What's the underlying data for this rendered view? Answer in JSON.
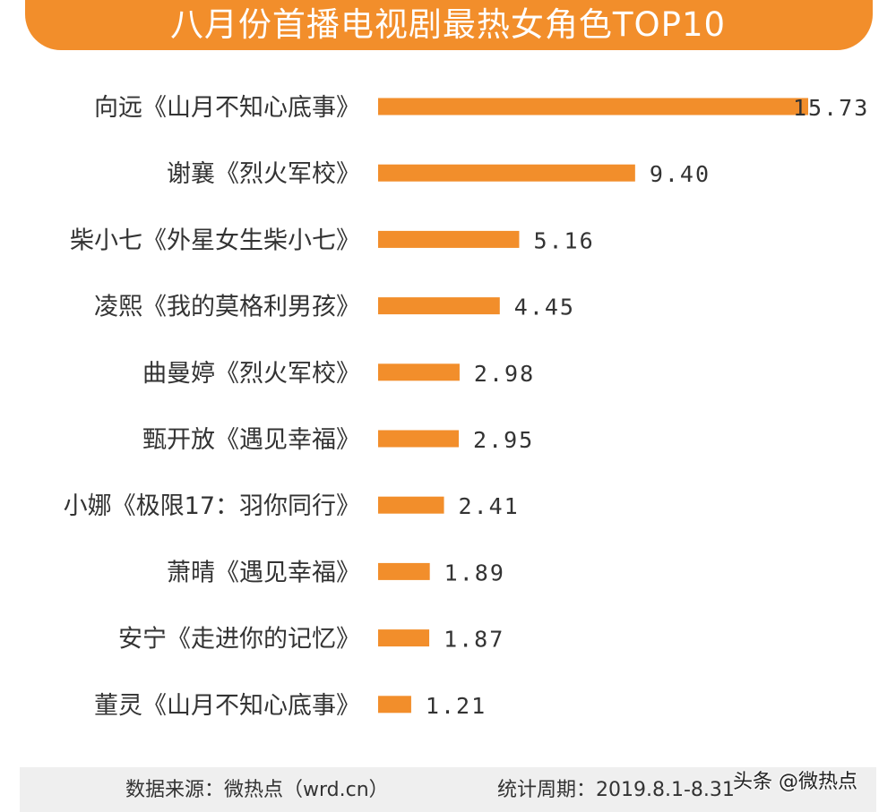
{
  "header": {
    "title": "八月份首播电视剧最热女角色TOP10"
  },
  "colors": {
    "bar": "#f28e2b",
    "header": "#f28e2b",
    "footer_bg": "#efefef"
  },
  "chart_data": {
    "type": "bar",
    "orientation": "horizontal",
    "title": "八月份首播电视剧最热女角色TOP10",
    "categories": [
      "向远《山月不知心底事》",
      "谢襄《烈火军校》",
      "柴小七《外星女生柴小七》",
      "凌熙《我的莫格利男孩》",
      "曲曼婷《烈火军校》",
      "甄开放《遇见幸福》",
      "小娜《极限17：羽你同行》",
      "萧晴《遇见幸福》",
      "安宁《走进你的记忆》",
      "董灵《山月不知心底事》"
    ],
    "values": [
      15.73,
      9.4,
      5.16,
      4.45,
      2.98,
      2.95,
      2.41,
      1.89,
      1.87,
      1.21
    ],
    "value_labels": [
      "15.73",
      "9.40",
      "5.16",
      "4.45",
      "2.98",
      "2.95",
      "2.41",
      "1.89",
      "1.87",
      "1.21"
    ],
    "xlim": [
      0,
      15.73
    ],
    "grid": false
  },
  "footer": {
    "source": "数据来源：微热点（wrd.cn）",
    "period": "统计周期：2019.8.1-8.31"
  },
  "watermark": "头条 @微热点"
}
